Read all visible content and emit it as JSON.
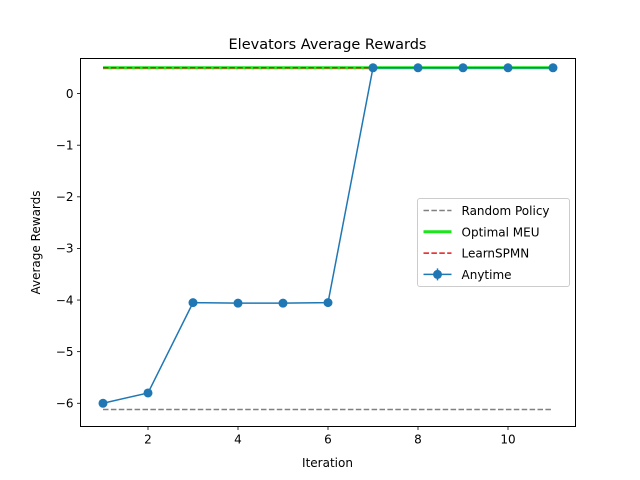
{
  "chart_data": {
    "type": "line",
    "title": "Elevators Average Rewards",
    "xlabel": "Iteration",
    "ylabel": "Average Rewards",
    "xlim": [
      0.5,
      11.5
    ],
    "ylim": [
      -6.45,
      0.68
    ],
    "xticks": [
      2,
      4,
      6,
      8,
      10
    ],
    "yticks": [
      -6,
      -5,
      -4,
      -3,
      -2,
      -1,
      0
    ],
    "ytick_labels": [
      "−6",
      "−5",
      "−4",
      "−3",
      "−2",
      "−1",
      "0"
    ],
    "grid": false,
    "legend_position": "center-right",
    "series": [
      {
        "name": "Random Policy",
        "x": [
          1,
          11
        ],
        "y": [
          -6.12,
          -6.12
        ],
        "color": "#808080",
        "style": "dashed"
      },
      {
        "name": "Optimal MEU",
        "x": [
          1,
          11
        ],
        "y": [
          0.5,
          0.5
        ],
        "color": "#1be51b",
        "style": "solid"
      },
      {
        "name": "LearnSPMN",
        "x": [
          1,
          11
        ],
        "y": [
          0.5,
          0.5
        ],
        "color": "#e31a1c",
        "style": "dashed"
      },
      {
        "name": "Anytime",
        "x": [
          1,
          2,
          3,
          4,
          5,
          6,
          7,
          8,
          9,
          10,
          11
        ],
        "y": [
          -6.0,
          -5.8,
          -4.05,
          -4.06,
          -4.06,
          -4.05,
          0.5,
          0.5,
          0.5,
          0.5,
          0.5
        ],
        "color": "#1f77b4",
        "style": "solid-marker"
      }
    ]
  }
}
